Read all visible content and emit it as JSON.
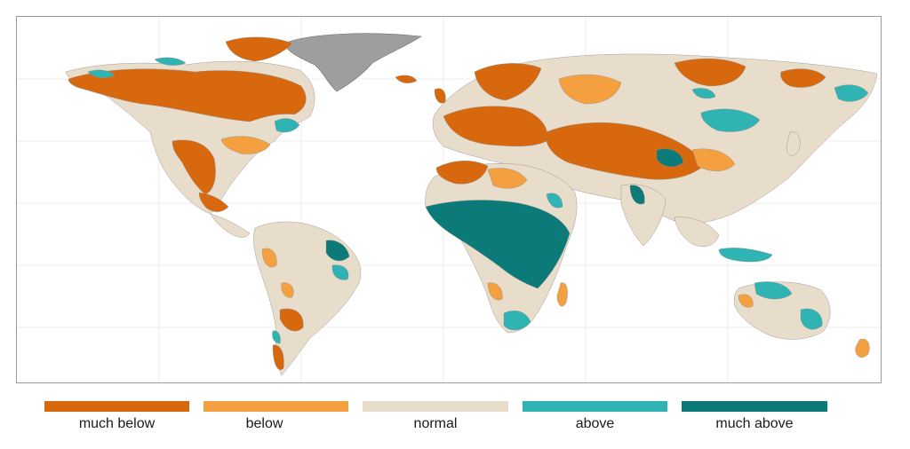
{
  "legend": {
    "items": [
      {
        "label": "much below",
        "color": "#d8680e"
      },
      {
        "label": "below",
        "color": "#f4a040"
      },
      {
        "label": "normal",
        "color": "#e8dccb"
      },
      {
        "label": "above",
        "color": "#2fb3b3"
      },
      {
        "label": "much above",
        "color": "#0b7a78"
      }
    ]
  },
  "map": {
    "ocean_color": "#ffffff",
    "no_data_color": "#9e9e9e",
    "border_color": "#8a8a8a"
  }
}
